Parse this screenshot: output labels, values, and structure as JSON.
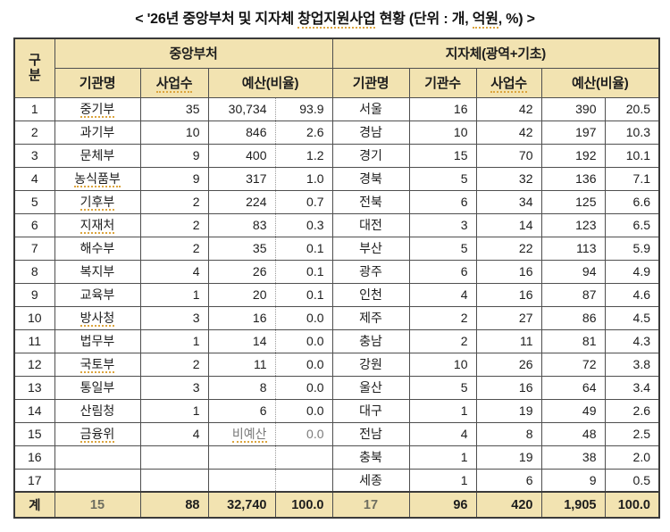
{
  "title": {
    "p1": "< '26년 중앙부처 및 지자체 ",
    "p2": "창업지원사업",
    "p3": " 현황 (단위 : 개, ",
    "p4": "억원",
    "p5": ", %) >"
  },
  "colors": {
    "header_bg": "#f2e3b1",
    "outer_border": "#3a3a3a",
    "inner_border": "#4f4f4f",
    "spellcheck_underline": "#dca53e",
    "muted_text": "#7a7a7a",
    "text": "#1d1d1d"
  },
  "table": {
    "header": {
      "gubun_top": "구",
      "gubun_bottom": "분",
      "central_group": "중앙부처",
      "local_group": "지자체(광역+기초)",
      "central_org_name": "기관명",
      "central_biz_count": "사업수",
      "central_budget_ratio": "예산(비율)",
      "local_org_name": "기관명",
      "local_org_count": "기관수",
      "local_biz_count": "사업수",
      "local_budget_ratio": "예산(비율)"
    },
    "rows": [
      {
        "no": "1",
        "ln": "중기부",
        "lsp": true,
        "lp": "35",
        "lb": "30,734",
        "lr": "93.9",
        "rn": "서울",
        "ro": "16",
        "rp": "42",
        "rb": "390",
        "rr": "20.5"
      },
      {
        "no": "2",
        "ln": "과기부",
        "lp": "10",
        "lb": "846",
        "lr": "2.6",
        "rn": "경남",
        "ro": "10",
        "rp": "42",
        "rb": "197",
        "rr": "10.3"
      },
      {
        "no": "3",
        "ln": "문체부",
        "lp": "9",
        "lb": "400",
        "lr": "1.2",
        "rn": "경기",
        "ro": "15",
        "rp": "70",
        "rb": "192",
        "rr": "10.1"
      },
      {
        "no": "4",
        "ln": "농식품부",
        "lsp": true,
        "lp": "9",
        "lb": "317",
        "lr": "1.0",
        "rn": "경북",
        "ro": "5",
        "rp": "32",
        "rb": "136",
        "rr": "7.1"
      },
      {
        "no": "5",
        "ln": "기후부",
        "lsp": true,
        "lp": "2",
        "lb": "224",
        "lr": "0.7",
        "rn": "전북",
        "ro": "6",
        "rp": "34",
        "rb": "125",
        "rr": "6.6"
      },
      {
        "no": "6",
        "ln": "지재처",
        "lsp": true,
        "lp": "2",
        "lb": "83",
        "lr": "0.3",
        "rn": "대전",
        "ro": "3",
        "rp": "14",
        "rb": "123",
        "rr": "6.5"
      },
      {
        "no": "7",
        "ln": "해수부",
        "lp": "2",
        "lb": "35",
        "lr": "0.1",
        "rn": "부산",
        "ro": "5",
        "rp": "22",
        "rb": "113",
        "rr": "5.9"
      },
      {
        "no": "8",
        "ln": "복지부",
        "lp": "4",
        "lb": "26",
        "lr": "0.1",
        "rn": "광주",
        "ro": "6",
        "rp": "16",
        "rb": "94",
        "rr": "4.9"
      },
      {
        "no": "9",
        "ln": "교육부",
        "lp": "1",
        "lb": "20",
        "lr": "0.1",
        "rn": "인천",
        "ro": "4",
        "rp": "16",
        "rb": "87",
        "rr": "4.6"
      },
      {
        "no": "10",
        "ln": "방사청",
        "lsp": true,
        "lp": "3",
        "lb": "16",
        "lr": "0.0",
        "rn": "제주",
        "ro": "2",
        "rp": "27",
        "rb": "86",
        "rr": "4.5"
      },
      {
        "no": "11",
        "ln": "법무부",
        "lp": "1",
        "lb": "14",
        "lr": "0.0",
        "rn": "충남",
        "ro": "2",
        "rp": "11",
        "rb": "81",
        "rr": "4.3"
      },
      {
        "no": "12",
        "ln": "국토부",
        "lsp": true,
        "lp": "2",
        "lb": "11",
        "lr": "0.0",
        "rn": "강원",
        "ro": "10",
        "rp": "26",
        "rb": "72",
        "rr": "3.8"
      },
      {
        "no": "13",
        "ln": "통일부",
        "lp": "3",
        "lb": "8",
        "lr": "0.0",
        "rn": "울산",
        "ro": "5",
        "rp": "16",
        "rb": "64",
        "rr": "3.4"
      },
      {
        "no": "14",
        "ln": "산림청",
        "lp": "1",
        "lb": "6",
        "lr": "0.0",
        "rn": "대구",
        "ro": "1",
        "rp": "19",
        "rb": "49",
        "rr": "2.6"
      },
      {
        "no": "15",
        "ln": "금융위",
        "lsp": true,
        "lp": "4",
        "lb": "비예산",
        "lbsp": true,
        "lmuted": true,
        "lr": "0.0",
        "rn": "전남",
        "ro": "4",
        "rp": "8",
        "rb": "48",
        "rr": "2.5"
      },
      {
        "no": "16",
        "ln": "",
        "lp": "",
        "lb": "",
        "lr": "",
        "rn": "충북",
        "ro": "1",
        "rp": "19",
        "rb": "38",
        "rr": "2.0"
      },
      {
        "no": "17",
        "ln": "",
        "lp": "",
        "lb": "",
        "lr": "",
        "rn": "세종",
        "ro": "1",
        "rp": "6",
        "rb": "9",
        "rr": "0.5"
      }
    ],
    "total": {
      "label": "계",
      "central_orgs": "15",
      "central_projects": "88",
      "central_budget": "32,740",
      "central_ratio": "100.0",
      "local_orgs": "17",
      "local_projects": "96",
      "local_biz": "420",
      "local_budget": "1,905",
      "local_ratio": "100.0"
    }
  }
}
